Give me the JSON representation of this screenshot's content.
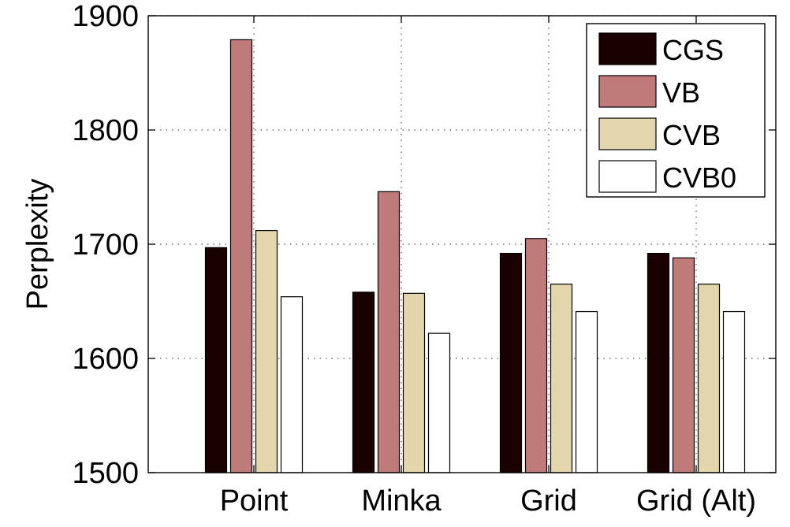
{
  "chart_data": {
    "type": "bar",
    "title": "",
    "xlabel": "",
    "ylabel": "Perplexity",
    "ylim": [
      1500,
      1900
    ],
    "yticks": [
      1500,
      1600,
      1700,
      1800,
      1900
    ],
    "categories": [
      "Point",
      "Minka",
      "Grid",
      "Grid (Alt)"
    ],
    "grid": true,
    "legend_position": "top-right",
    "series": [
      {
        "name": "CGS",
        "color": "#1a0000",
        "values": [
          1697,
          1658,
          1692,
          1692
        ]
      },
      {
        "name": "VB",
        "color": "#c07a7a",
        "values": [
          1879,
          1746,
          1705,
          1688
        ]
      },
      {
        "name": "CVB",
        "color": "#e3d6ad",
        "values": [
          1712,
          1657,
          1665,
          1665
        ]
      },
      {
        "name": "CVB0",
        "color": "#ffffff",
        "values": [
          1654,
          1622,
          1641,
          1641
        ]
      }
    ]
  }
}
